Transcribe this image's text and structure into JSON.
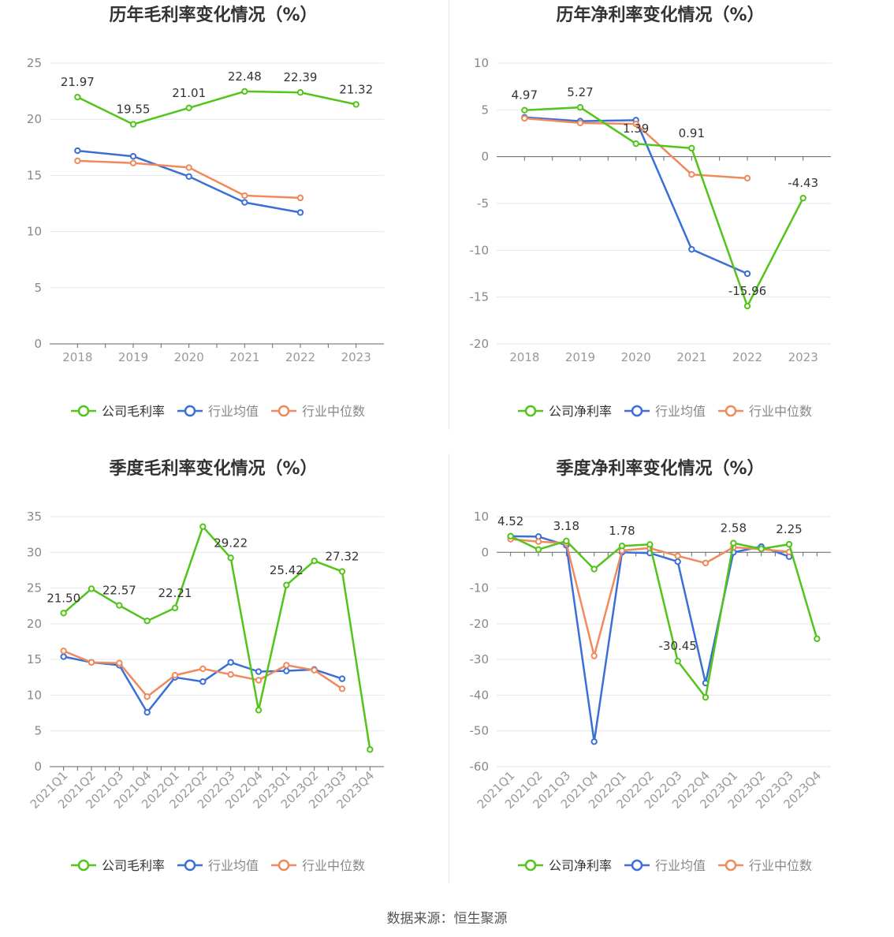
{
  "source_text": "数据来源：恒生聚源",
  "colors": {
    "company": "#52c41a",
    "avg": "#3b6fd8",
    "median": "#f08a5d"
  },
  "chart_data": [
    {
      "type": "line",
      "title": "历年毛利率变化情况（%）",
      "x": [
        "2018",
        "2019",
        "2020",
        "2021",
        "2022",
        "2023"
      ],
      "ylim": [
        0,
        25
      ],
      "yticks": [
        0,
        5,
        10,
        15,
        20,
        25
      ],
      "grid": true,
      "legend": "bottom",
      "series": [
        {
          "name": "公司毛利率",
          "values": [
            21.97,
            19.55,
            21.01,
            22.48,
            22.39,
            21.32
          ],
          "labels": [
            "21.97",
            "19.55",
            "21.01",
            "22.48",
            "22.39",
            "21.32"
          ]
        },
        {
          "name": "行业均值",
          "values": [
            17.2,
            16.7,
            14.9,
            12.6,
            11.7,
            null
          ]
        },
        {
          "name": "行业中位数",
          "values": [
            16.3,
            16.1,
            15.7,
            13.2,
            13.0,
            null
          ]
        }
      ]
    },
    {
      "type": "line",
      "title": "历年净利率变化情况（%）",
      "x": [
        "2018",
        "2019",
        "2020",
        "2021",
        "2022",
        "2023"
      ],
      "ylim": [
        -20,
        10
      ],
      "yticks": [
        -20,
        -15,
        -10,
        -5,
        0,
        5,
        10
      ],
      "grid": true,
      "legend": "bottom",
      "series": [
        {
          "name": "公司净利率",
          "values": [
            4.97,
            5.27,
            1.39,
            0.91,
            -15.96,
            -4.43
          ],
          "labels": [
            "4.97",
            "5.27",
            "1.39",
            "0.91",
            "-15.96",
            "-4.43"
          ]
        },
        {
          "name": "行业均值",
          "values": [
            4.2,
            3.8,
            3.9,
            -9.9,
            -12.5,
            null
          ]
        },
        {
          "name": "行业中位数",
          "values": [
            4.1,
            3.6,
            3.5,
            -1.9,
            -2.3,
            null
          ]
        }
      ]
    },
    {
      "type": "line",
      "title": "季度毛利率变化情况（%）",
      "x": [
        "2021Q1",
        "2021Q2",
        "2021Q3",
        "2021Q4",
        "2022Q1",
        "2022Q2",
        "2022Q3",
        "2022Q4",
        "2023Q1",
        "2023Q2",
        "2023Q3",
        "2023Q4"
      ],
      "ylim": [
        0,
        35
      ],
      "yticks": [
        0,
        5,
        10,
        15,
        20,
        25,
        30,
        35
      ],
      "grid": true,
      "legend": "bottom",
      "series": [
        {
          "name": "公司毛利率",
          "values": [
            21.5,
            24.9,
            22.57,
            20.4,
            22.21,
            33.6,
            29.22,
            7.9,
            25.42,
            28.8,
            27.32,
            2.4
          ],
          "labels": [
            "21.50",
            "",
            "22.57",
            "",
            "22.21",
            "",
            "29.22",
            "",
            "25.42",
            "",
            "27.32",
            ""
          ]
        },
        {
          "name": "行业均值",
          "values": [
            15.4,
            14.6,
            14.2,
            7.6,
            12.5,
            11.9,
            14.6,
            13.3,
            13.4,
            13.6,
            12.3,
            null
          ]
        },
        {
          "name": "行业中位数",
          "values": [
            16.2,
            14.6,
            14.5,
            9.8,
            12.8,
            13.7,
            12.9,
            12.1,
            14.2,
            13.5,
            10.9,
            null
          ]
        }
      ]
    },
    {
      "type": "line",
      "title": "季度净利率变化情况（%）",
      "x": [
        "2021Q1",
        "2021Q2",
        "2021Q3",
        "2021Q4",
        "2022Q1",
        "2022Q2",
        "2022Q3",
        "2022Q4",
        "2023Q1",
        "2023Q2",
        "2023Q3",
        "2023Q4"
      ],
      "ylim": [
        -60,
        10
      ],
      "yticks": [
        -60,
        -50,
        -40,
        -30,
        -20,
        -10,
        0,
        10
      ],
      "grid": true,
      "legend": "bottom",
      "series": [
        {
          "name": "公司净利率",
          "values": [
            4.52,
            0.8,
            3.18,
            -4.7,
            1.78,
            2.2,
            -30.45,
            -40.6,
            2.58,
            1.0,
            2.25,
            -24.2
          ],
          "labels": [
            "4.52",
            "",
            "3.18",
            "",
            "1.78",
            "",
            "-30.45",
            "",
            "2.58",
            "",
            "2.25",
            ""
          ]
        },
        {
          "name": "行业均值",
          "values": [
            4.5,
            4.4,
            2.0,
            -53.0,
            0.0,
            -0.2,
            -2.6,
            -36.6,
            0.0,
            1.6,
            -1.2,
            null
          ]
        },
        {
          "name": "行业中位数",
          "values": [
            3.7,
            3.0,
            2.6,
            -29.0,
            0.5,
            1.2,
            -1.0,
            -3.0,
            1.4,
            0.9,
            0.1,
            null
          ]
        }
      ]
    }
  ]
}
